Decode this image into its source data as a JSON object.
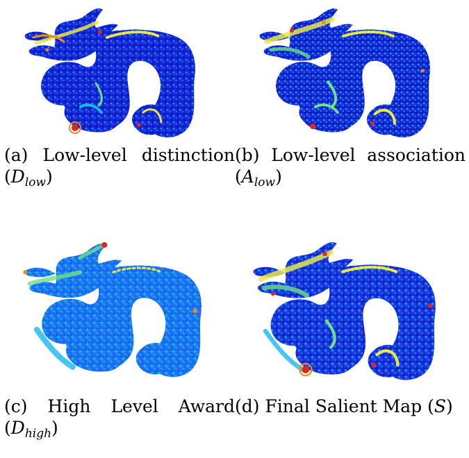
{
  "figures": [
    {
      "id": "a",
      "caption_words": [
        "(a)",
        "Low-level",
        "distinction"
      ],
      "caption_math_base": "D",
      "caption_math_sub": "low",
      "caption_math_form": "(D_low)",
      "caption_math_open": "(",
      "caption_math_close": ")",
      "image_description_name": "dragon-saliency-low-level-distinction"
    },
    {
      "id": "b",
      "caption_words": [
        "(b)",
        "Low-level",
        "association"
      ],
      "caption_math_base": "A",
      "caption_math_sub": "low",
      "caption_math_open": "(",
      "caption_math_close": ")",
      "image_description_name": "dragon-saliency-low-level-association"
    },
    {
      "id": "c",
      "caption_words": [
        "(c)",
        "High",
        "Level",
        "Award"
      ],
      "caption_math_base": "D",
      "caption_math_sub": "high",
      "caption_math_open": "(",
      "caption_math_close": ")",
      "image_description_name": "dragon-saliency-high-level-award"
    },
    {
      "id": "d",
      "caption_text": "(d) Final Salient Map (",
      "caption_math_base": "S",
      "caption_math_close": ")",
      "image_description_name": "dragon-saliency-final-map"
    }
  ],
  "colors": {
    "dark_blue": "#1016c8",
    "blue": "#1c3cf0",
    "cyan": "#18b8f0",
    "green": "#6ee08a",
    "yellow": "#e8e84a",
    "orange": "#f08a20",
    "red": "#e02818"
  }
}
